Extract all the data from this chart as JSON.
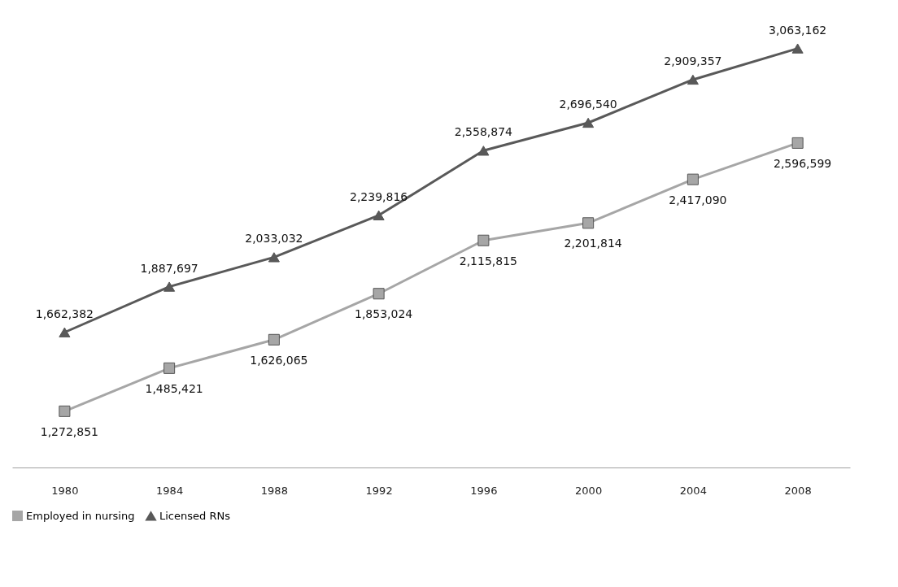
{
  "chart_data": {
    "type": "line",
    "categories": [
      "1980",
      "1984",
      "1988",
      "1992",
      "1996",
      "2000",
      "2004",
      "2008"
    ],
    "series": [
      {
        "name": "Employed in nursing",
        "color": "#a6a6a6",
        "marker": "square",
        "values": [
          1272851,
          1485421,
          1626065,
          1853024,
          2115815,
          2201814,
          2417090,
          2596599
        ],
        "value_labels": [
          "1,272,851",
          "1,485,421",
          "1,626,065",
          "1,853,024",
          "2,115,815",
          "2,201,814",
          "2,417,090",
          "2,596,599"
        ]
      },
      {
        "name": "Licensed RNs",
        "color": "#595959",
        "marker": "triangle",
        "values": [
          1662382,
          1887697,
          2033032,
          2239816,
          2558874,
          2696540,
          2909357,
          3063162
        ],
        "value_labels": [
          "1,662,382",
          "1,887,697",
          "2,033,032",
          "2,239,816",
          "2,558,874",
          "2,696,540",
          "2,909,357",
          "3,063,162"
        ]
      }
    ],
    "grid": false,
    "legend": "bottom",
    "line_style": "solid"
  }
}
